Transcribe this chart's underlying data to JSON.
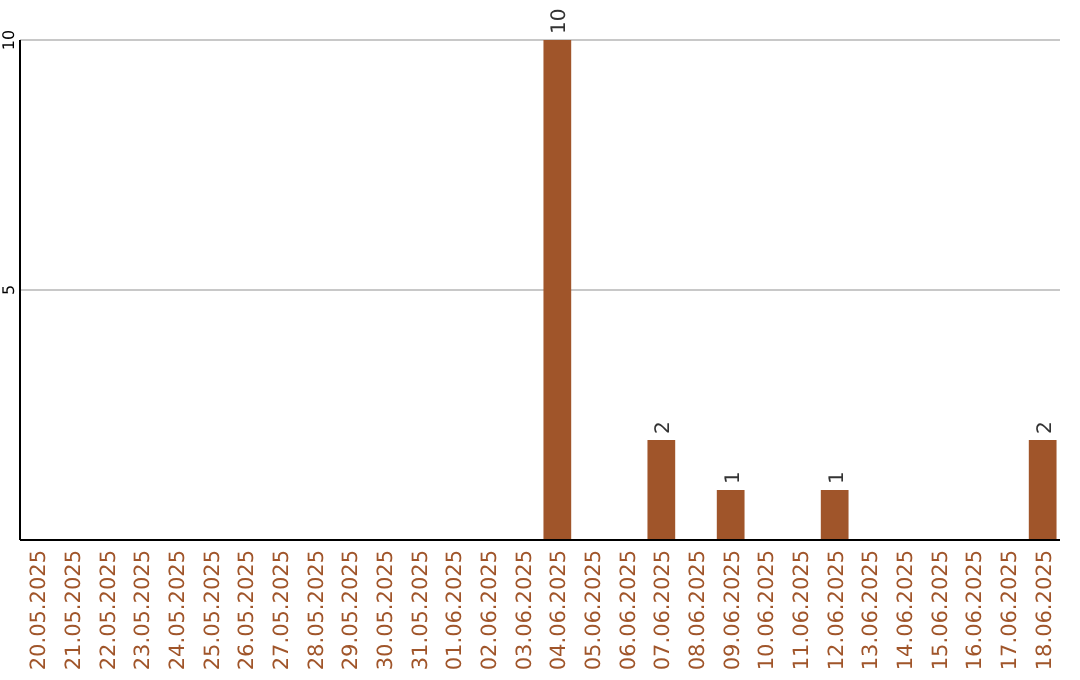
{
  "chart_data": {
    "type": "bar",
    "categories": [
      "20.05.2025",
      "21.05.2025",
      "22.05.2025",
      "23.05.2025",
      "24.05.2025",
      "25.05.2025",
      "26.05.2025",
      "27.05.2025",
      "28.05.2025",
      "29.05.2025",
      "30.05.2025",
      "31.05.2025",
      "01.06.2025",
      "02.06.2025",
      "03.06.2025",
      "04.06.2025",
      "05.06.2025",
      "06.06.2025",
      "07.06.2025",
      "08.06.2025",
      "09.06.2025",
      "10.06.2025",
      "11.06.2025",
      "12.06.2025",
      "13.06.2025",
      "14.06.2025",
      "15.06.2025",
      "16.06.2025",
      "17.06.2025",
      "18.06.2025"
    ],
    "values": [
      0,
      0,
      0,
      0,
      0,
      0,
      0,
      0,
      0,
      0,
      0,
      0,
      0,
      0,
      0,
      10,
      0,
      0,
      2,
      0,
      1,
      0,
      0,
      1,
      0,
      0,
      0,
      0,
      0,
      2
    ],
    "value_labels": [
      null,
      null,
      null,
      null,
      null,
      null,
      null,
      null,
      null,
      null,
      null,
      null,
      null,
      null,
      null,
      "10",
      null,
      null,
      "2",
      null,
      "1",
      null,
      null,
      "1",
      null,
      null,
      null,
      null,
      null,
      "2"
    ],
    "color": "#a0552a",
    "ylim": [
      0,
      10
    ],
    "yticks": [
      {
        "value": 0,
        "label": null
      },
      5,
      10
    ],
    "grid": "y"
  }
}
